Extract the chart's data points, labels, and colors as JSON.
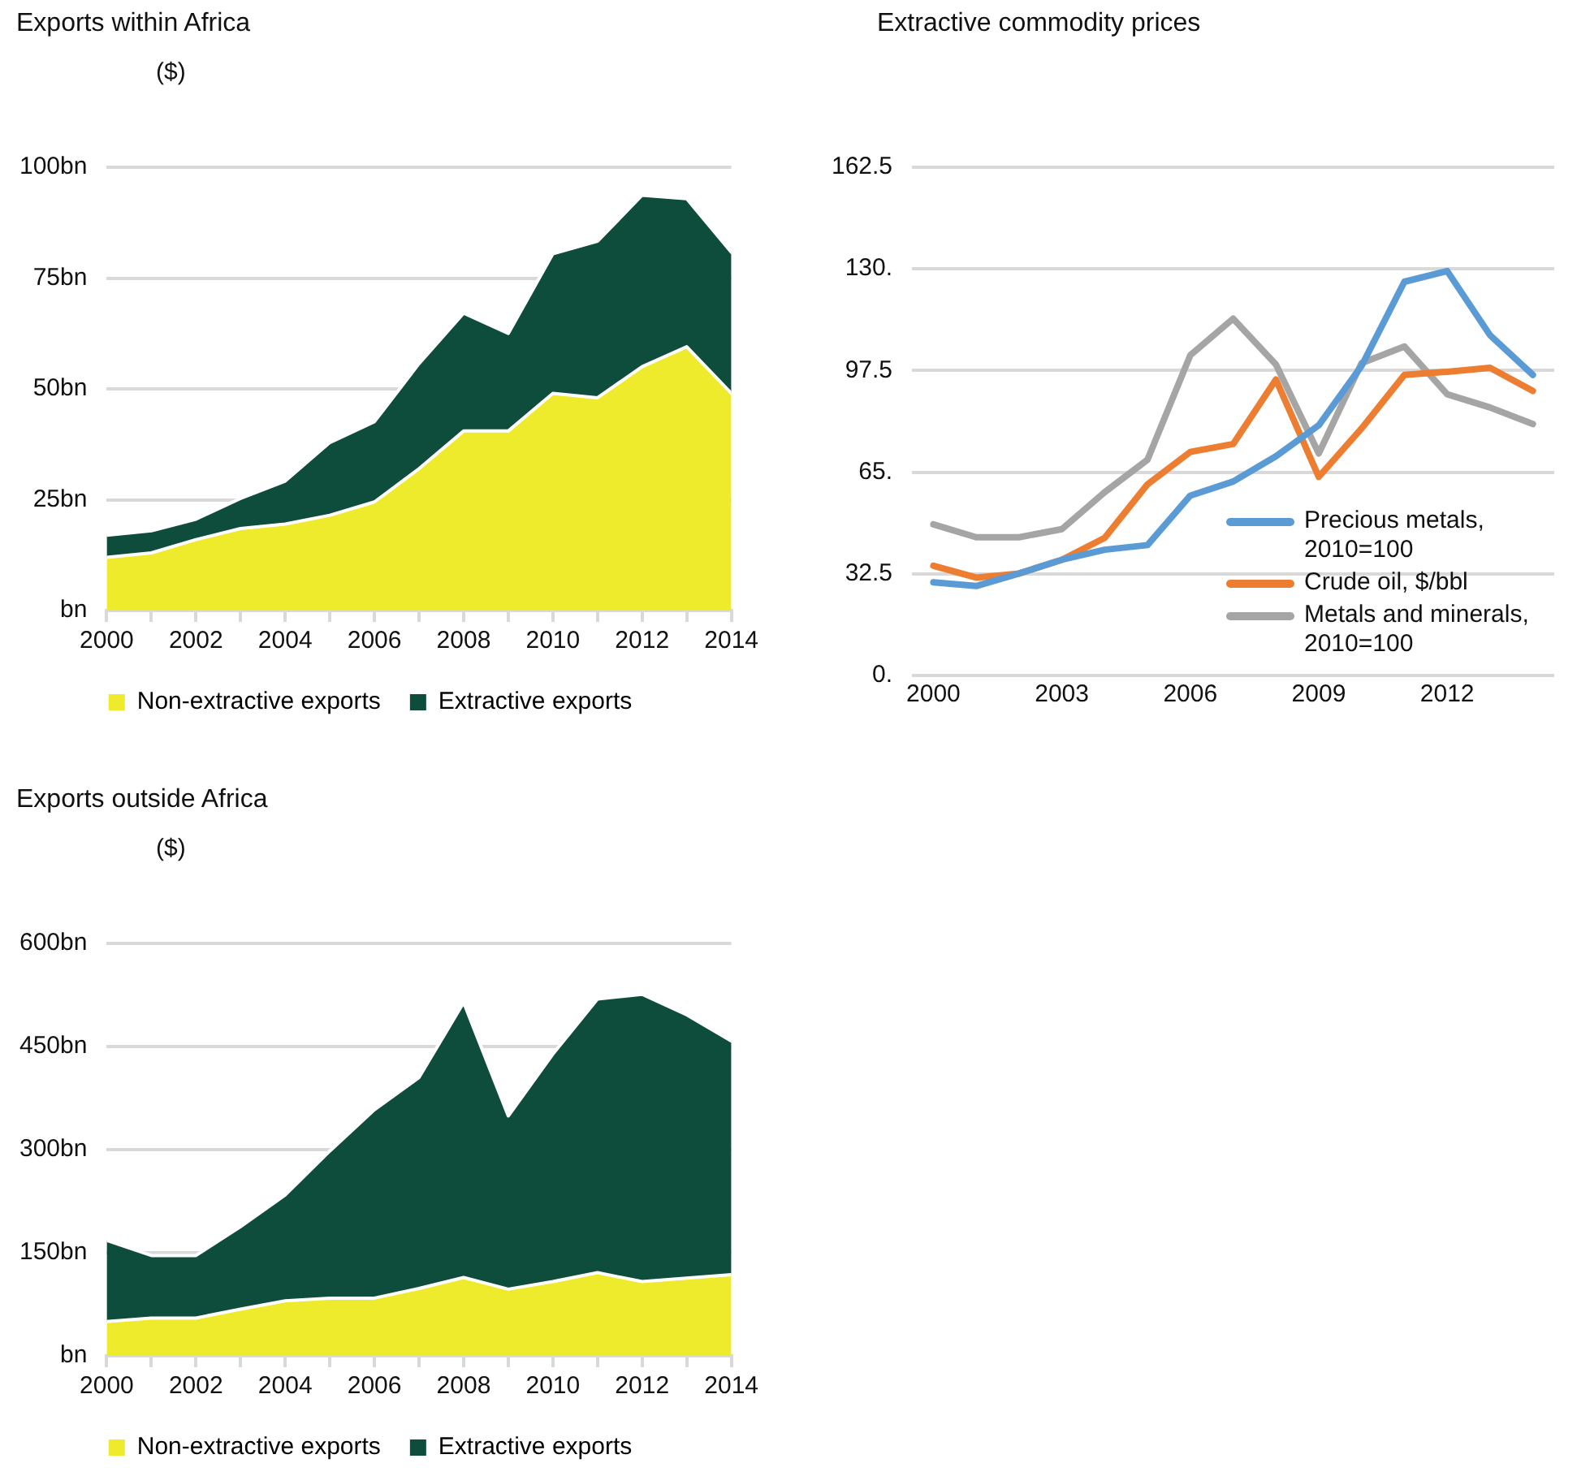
{
  "chart_data": [
    {
      "type": "area",
      "title": "Exports within Africa",
      "subtitle": "($)",
      "stacked": true,
      "grid": "y",
      "legend": "bottom",
      "x": [
        2000,
        2001,
        2002,
        2003,
        2004,
        2005,
        2006,
        2007,
        2008,
        2009,
        2010,
        2011,
        2012,
        2013,
        2014
      ],
      "xlim": [
        2000,
        2014
      ],
      "xticks": [
        2000,
        {
          "value": 2001,
          "label": null
        },
        2002,
        {
          "value": 2003,
          "label": null
        },
        2004,
        {
          "value": 2005,
          "label": null
        },
        2006,
        {
          "value": 2007,
          "label": null
        },
        2008,
        {
          "value": 2009,
          "label": null
        },
        2010,
        {
          "value": 2011,
          "label": null
        },
        2012,
        {
          "value": 2013,
          "label": null
        },
        2014
      ],
      "ylim": [
        0,
        100
      ],
      "yticks": [
        {
          "value": 0,
          "label": "bn"
        },
        {
          "value": 25,
          "label": "25bn"
        },
        {
          "value": 50,
          "label": "50bn"
        },
        {
          "value": 75,
          "label": "75bn"
        },
        {
          "value": 100,
          "label": "100bn"
        }
      ],
      "series": [
        {
          "name": "Non-extractive exports",
          "color": "#eeea2c",
          "values": [
            12,
            13,
            16,
            18.5,
            19.5,
            21.5,
            24.5,
            32,
            40.5,
            40.5,
            49,
            48,
            55,
            59.5,
            49
          ]
        },
        {
          "name": "Extractive exports",
          "color": "#0e4c3c",
          "values": [
            5,
            5,
            4.6,
            6.8,
            9.7,
            16.4,
            18.1,
            23.7,
            26.6,
            22,
            31.5,
            35.3,
            38.7,
            33.4,
            31.8
          ]
        }
      ]
    },
    {
      "type": "line",
      "title": "Extractive commodity prices",
      "grid": "y",
      "legend": "bottom right",
      "x": [
        2000,
        2001,
        2002,
        2003,
        2004,
        2005,
        2006,
        2007,
        2008,
        2009,
        2010,
        2011,
        2012,
        2013,
        2014
      ],
      "xlim": [
        1999.5,
        2014.5
      ],
      "xticks": [
        2000,
        2003,
        2006,
        2009,
        2012
      ],
      "ylim": [
        0,
        162.5
      ],
      "yticks": [
        {
          "value": 0,
          "label": "0."
        },
        32.5,
        {
          "value": 65,
          "label": "65."
        },
        97.5,
        {
          "value": 130,
          "label": "130."
        },
        162.5
      ],
      "series": [
        {
          "name": "Precious metals, 2010=100",
          "color": "#5b9bd5",
          "values": [
            29.8,
            28.6,
            32.6,
            37,
            40.2,
            41.7,
            57.5,
            62,
            70.1,
            80,
            99,
            125.9,
            129.3,
            108.8,
            96.1
          ]
        },
        {
          "name": "Crude oil, $/bbl",
          "color": "#ed7d31",
          "values": [
            35.1,
            31.3,
            32.6,
            37,
            44,
            61.1,
            71.5,
            74,
            94.6,
            63.5,
            79,
            96.1,
            97.1,
            98.4,
            91
          ]
        },
        {
          "name": "Metals and minerals, 2010=100",
          "color": "#a5a5a5",
          "values": [
            48.3,
            44.2,
            44.2,
            46.8,
            58.6,
            69,
            102.4,
            114.1,
            99.4,
            71,
            99.9,
            105.2,
            89.9,
            85.7,
            80.4
          ]
        }
      ]
    },
    {
      "type": "area",
      "title": "Exports outside Africa",
      "subtitle": "($)",
      "stacked": true,
      "grid": "y",
      "legend": "bottom",
      "x": [
        2000,
        2001,
        2002,
        2003,
        2004,
        2005,
        2006,
        2007,
        2008,
        2009,
        2010,
        2011,
        2012,
        2013,
        2014
      ],
      "xlim": [
        2000,
        2014
      ],
      "xticks": [
        2000,
        {
          "value": 2001,
          "label": null
        },
        2002,
        {
          "value": 2003,
          "label": null
        },
        2004,
        {
          "value": 2005,
          "label": null
        },
        2006,
        {
          "value": 2007,
          "label": null
        },
        2008,
        {
          "value": 2009,
          "label": null
        },
        2010,
        {
          "value": 2011,
          "label": null
        },
        2012,
        {
          "value": 2013,
          "label": null
        },
        2014
      ],
      "ylim": [
        0,
        600
      ],
      "yticks": [
        {
          "value": 0,
          "label": "bn"
        },
        {
          "value": 150,
          "label": "150bn"
        },
        {
          "value": 300,
          "label": "300bn"
        },
        {
          "value": 450,
          "label": "450bn"
        },
        {
          "value": 600,
          "label": "600bn"
        }
      ],
      "series": [
        {
          "name": "Non-extractive exports",
          "color": "#eeea2c",
          "values": [
            50,
            55,
            55,
            68,
            80,
            84,
            84,
            98,
            114,
            97,
            108,
            121,
            108,
            113,
            118
          ]
        },
        {
          "name": "Extractive exports",
          "color": "#0e4c3c",
          "values": [
            118,
            91,
            91,
            120,
            154,
            214,
            274,
            307,
            400,
            252,
            331,
            398,
            418,
            383,
            340
          ]
        }
      ]
    }
  ]
}
